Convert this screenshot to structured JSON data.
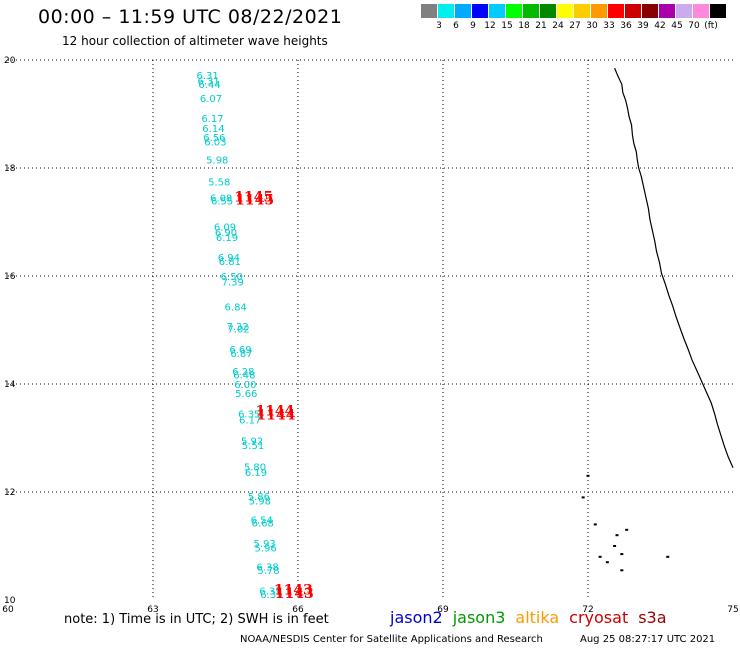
{
  "header": {
    "title": "00:00 – 11:59 UTC 08/22/2021",
    "subtitle": "12 hour collection of altimeter wave heights"
  },
  "legend": {
    "unit": "(ft)",
    "colors": [
      "#808080",
      "#00eeee",
      "#00aaff",
      "#0000ff",
      "#00ccff",
      "#00ff00",
      "#00bb00",
      "#008800",
      "#ffff00",
      "#ffcc00",
      "#ff9900",
      "#ff0000",
      "#cc0000",
      "#880000",
      "#aa00aa",
      "#ccaaee",
      "#ff88dd",
      "#000000"
    ],
    "labels": [
      "3",
      "6",
      "9",
      "12",
      "15",
      "18",
      "21",
      "24",
      "27",
      "30",
      "33",
      "36",
      "39",
      "42",
      "45",
      "70"
    ]
  },
  "map": {
    "lon_range": [
      60,
      75
    ],
    "lat_range": [
      10,
      20
    ],
    "lon_ticks": [
      "60",
      "63",
      "66",
      "69",
      "72",
      "75"
    ],
    "lat_ticks": [
      "20",
      "18",
      "16",
      "14",
      "12",
      "10"
    ],
    "observations": [
      {
        "lat": 19.65,
        "lon": 63.9,
        "v": "6.31"
      },
      {
        "lat": 19.55,
        "lon": 63.92,
        "v": "6.31"
      },
      {
        "lat": 19.48,
        "lon": 63.94,
        "v": "6.44"
      },
      {
        "lat": 19.22,
        "lon": 63.97,
        "v": "6.07"
      },
      {
        "lat": 18.85,
        "lon": 64.0,
        "v": "6.17"
      },
      {
        "lat": 18.67,
        "lon": 64.02,
        "v": "6.14"
      },
      {
        "lat": 18.5,
        "lon": 64.04,
        "v": "6.56"
      },
      {
        "lat": 18.42,
        "lon": 64.06,
        "v": "6.03"
      },
      {
        "lat": 18.08,
        "lon": 64.1,
        "v": "5.98"
      },
      {
        "lat": 17.68,
        "lon": 64.14,
        "v": "5.58"
      },
      {
        "lat": 17.38,
        "lon": 64.18,
        "v": "6.08"
      },
      {
        "lat": 17.32,
        "lon": 64.2,
        "v": "6.55"
      },
      {
        "lat": 16.84,
        "lon": 64.26,
        "v": "6.09"
      },
      {
        "lat": 16.74,
        "lon": 64.28,
        "v": "6.90"
      },
      {
        "lat": 16.65,
        "lon": 64.3,
        "v": "6.19"
      },
      {
        "lat": 16.28,
        "lon": 64.34,
        "v": "6.94"
      },
      {
        "lat": 16.2,
        "lon": 64.36,
        "v": "6.81"
      },
      {
        "lat": 15.93,
        "lon": 64.4,
        "v": "6.50"
      },
      {
        "lat": 15.82,
        "lon": 64.42,
        "v": "7.39"
      },
      {
        "lat": 15.36,
        "lon": 64.48,
        "v": "6.84"
      },
      {
        "lat": 15.0,
        "lon": 64.52,
        "v": "7.32"
      },
      {
        "lat": 14.95,
        "lon": 64.54,
        "v": "7.02"
      },
      {
        "lat": 14.57,
        "lon": 64.58,
        "v": "6.69"
      },
      {
        "lat": 14.5,
        "lon": 64.6,
        "v": "6.87"
      },
      {
        "lat": 14.17,
        "lon": 64.64,
        "v": "6.28"
      },
      {
        "lat": 14.1,
        "lon": 64.66,
        "v": "6.48"
      },
      {
        "lat": 13.93,
        "lon": 64.68,
        "v": "6.00"
      },
      {
        "lat": 13.76,
        "lon": 64.7,
        "v": "5.66"
      },
      {
        "lat": 13.38,
        "lon": 64.76,
        "v": "6.35"
      },
      {
        "lat": 13.27,
        "lon": 64.78,
        "v": "6.17"
      },
      {
        "lat": 12.88,
        "lon": 64.82,
        "v": "5.92"
      },
      {
        "lat": 12.8,
        "lon": 64.84,
        "v": "5.51"
      },
      {
        "lat": 12.4,
        "lon": 64.88,
        "v": "5.80"
      },
      {
        "lat": 12.3,
        "lon": 64.9,
        "v": "6.19"
      },
      {
        "lat": 11.85,
        "lon": 64.96,
        "v": "5.86"
      },
      {
        "lat": 11.77,
        "lon": 64.98,
        "v": "5.98"
      },
      {
        "lat": 11.42,
        "lon": 65.02,
        "v": "6.54"
      },
      {
        "lat": 11.36,
        "lon": 65.04,
        "v": "6.68"
      },
      {
        "lat": 10.98,
        "lon": 65.08,
        "v": "5.93"
      },
      {
        "lat": 10.9,
        "lon": 65.1,
        "v": "5.96"
      },
      {
        "lat": 10.55,
        "lon": 65.14,
        "v": "6.38"
      },
      {
        "lat": 10.48,
        "lon": 65.16,
        "v": "5.78"
      },
      {
        "lat": 10.1,
        "lon": 65.2,
        "v": "6.35"
      },
      {
        "lat": 10.04,
        "lon": 65.22,
        "v": "6.35"
      }
    ],
    "pass_labels": [
      {
        "lat": 17.38,
        "lon": 64.68,
        "v": "1145"
      },
      {
        "lat": 17.32,
        "lon": 64.7,
        "v": "1145"
      },
      {
        "lat": 13.42,
        "lon": 65.12,
        "v": "1144"
      },
      {
        "lat": 13.34,
        "lon": 65.14,
        "v": "1144"
      },
      {
        "lat": 10.1,
        "lon": 65.5,
        "v": "1143"
      },
      {
        "lat": 10.04,
        "lon": 65.52,
        "v": "1143"
      }
    ],
    "coastline": [
      [
        19.85,
        72.55
      ],
      [
        19.7,
        72.62
      ],
      [
        19.55,
        72.7
      ],
      [
        19.4,
        72.72
      ],
      [
        19.25,
        72.78
      ],
      [
        19.1,
        72.82
      ],
      [
        18.95,
        72.85
      ],
      [
        18.8,
        72.9
      ],
      [
        18.6,
        72.92
      ],
      [
        18.45,
        72.95
      ],
      [
        18.3,
        73.0
      ],
      [
        18.15,
        73.02
      ],
      [
        18.0,
        73.05
      ],
      [
        17.85,
        73.1
      ],
      [
        17.65,
        73.15
      ],
      [
        17.45,
        73.2
      ],
      [
        17.25,
        73.25
      ],
      [
        17.05,
        73.28
      ],
      [
        16.85,
        73.33
      ],
      [
        16.65,
        73.38
      ],
      [
        16.45,
        73.42
      ],
      [
        16.25,
        73.48
      ],
      [
        16.05,
        73.52
      ],
      [
        15.85,
        73.6
      ],
      [
        15.65,
        73.67
      ],
      [
        15.45,
        73.75
      ],
      [
        15.25,
        73.82
      ],
      [
        15.05,
        73.9
      ],
      [
        14.85,
        73.98
      ],
      [
        14.65,
        74.07
      ],
      [
        14.45,
        74.15
      ],
      [
        14.25,
        74.25
      ],
      [
        14.05,
        74.35
      ],
      [
        13.85,
        74.45
      ],
      [
        13.65,
        74.55
      ],
      [
        13.45,
        74.62
      ],
      [
        13.25,
        74.68
      ],
      [
        13.05,
        74.75
      ],
      [
        12.85,
        74.82
      ],
      [
        12.65,
        74.9
      ],
      [
        12.45,
        75.0
      ]
    ],
    "islands": [
      [
        12.3,
        72.0
      ],
      [
        11.9,
        71.9
      ],
      [
        11.4,
        72.15
      ],
      [
        11.3,
        72.8
      ],
      [
        11.2,
        72.6
      ],
      [
        11.0,
        72.55
      ],
      [
        10.85,
        72.7
      ],
      [
        10.8,
        72.25
      ],
      [
        10.7,
        72.4
      ],
      [
        10.8,
        73.65
      ],
      [
        10.55,
        72.7
      ]
    ]
  },
  "note": "note: 1) Time is in UTC; 2) SWH is in feet",
  "satellites": [
    {
      "name": "jason2",
      "color": "#0000cc"
    },
    {
      "name": "jason3",
      "color": "#009900"
    },
    {
      "name": "altika",
      "color": "#ff9900"
    },
    {
      "name": "cryosat",
      "color": "#cc0000"
    },
    {
      "name": "s3a",
      "color": "#990000"
    }
  ],
  "footer": "NOAA/NESDIS Center for Satellite Applications and Research",
  "timestamp": "Aug 25 08:27:17 UTC 2021"
}
